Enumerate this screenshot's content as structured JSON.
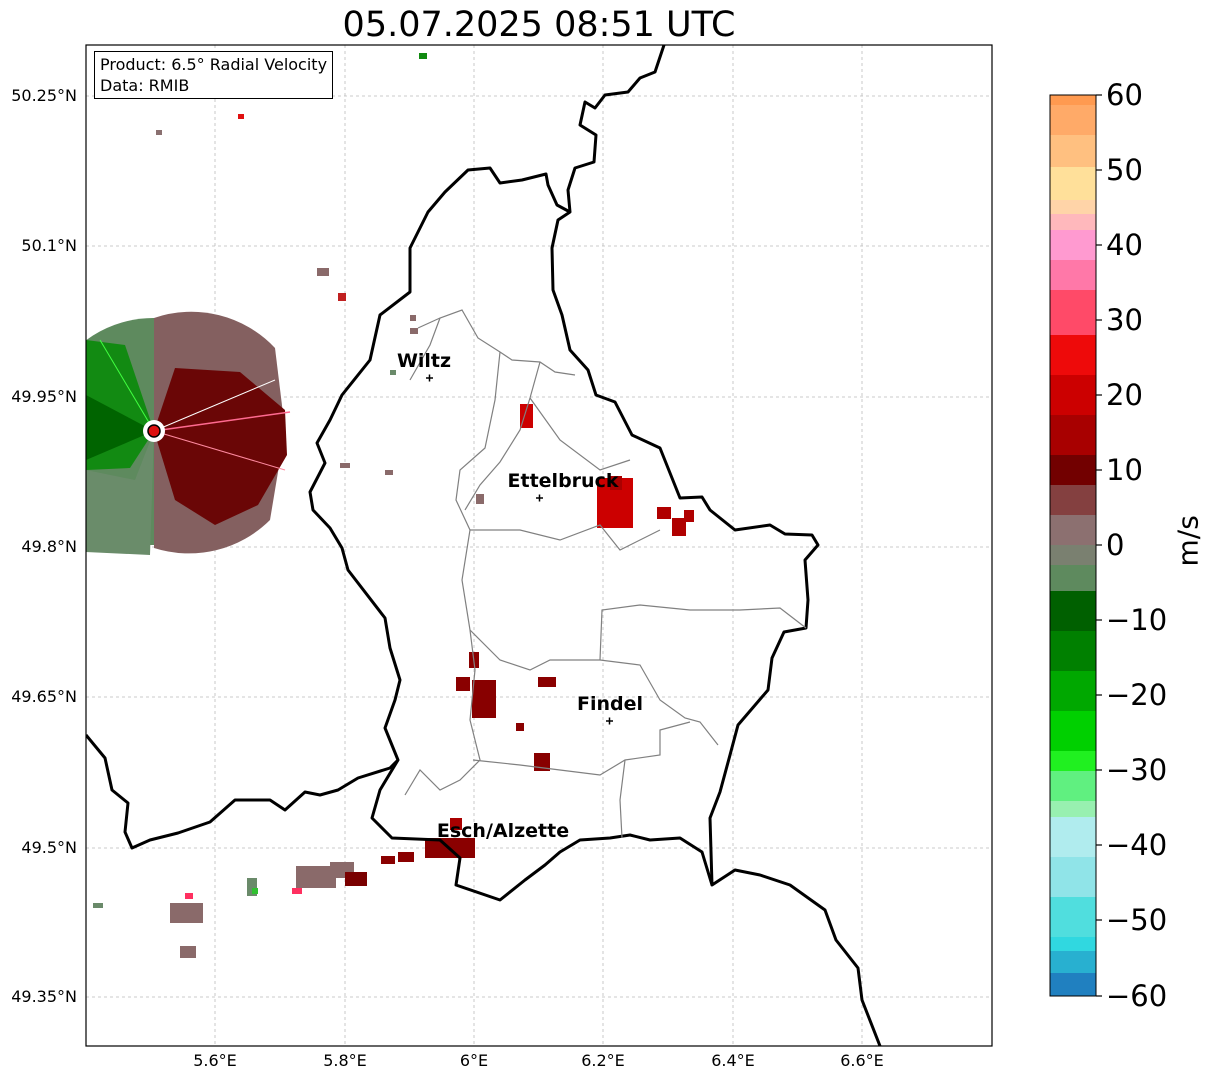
{
  "title": "05.07.2025 08:51 UTC",
  "info_box": {
    "product": "Product: 6.5° Radial Velocity",
    "data_source": "Data: RMIB"
  },
  "axes": {
    "lat_labels": [
      "50.25°N",
      "50.1°N",
      "49.95°N",
      "49.8°N",
      "49.65°N",
      "49.5°N",
      "49.35°N"
    ],
    "lon_labels": [
      "5.6°E",
      "5.8°E",
      "6°E",
      "6.2°E",
      "6.4°E",
      "6.6°E"
    ]
  },
  "cities": {
    "wiltz": "Wiltz",
    "ettelbruck": "Ettelbruck",
    "findel": "Findel",
    "esch": "Esch/Alzette"
  },
  "colorbar": {
    "unit": "m/s",
    "ticks": [
      "60",
      "50",
      "40",
      "30",
      "20",
      "10",
      "0",
      "−10",
      "−20",
      "−30",
      "−40",
      "−50",
      "−60"
    ],
    "range": [
      -60,
      60
    ]
  },
  "colors": {
    "negative_strong": "#006400",
    "negative_mid": "#00c000",
    "neutral": "#8a7a7a",
    "positive_dark": "#6e0000",
    "positive_bright": "#ff0000",
    "pink": "#ff88cc",
    "orange": "#ffa060",
    "cyan": "#30e0e0",
    "blue": "#2080c0"
  }
}
